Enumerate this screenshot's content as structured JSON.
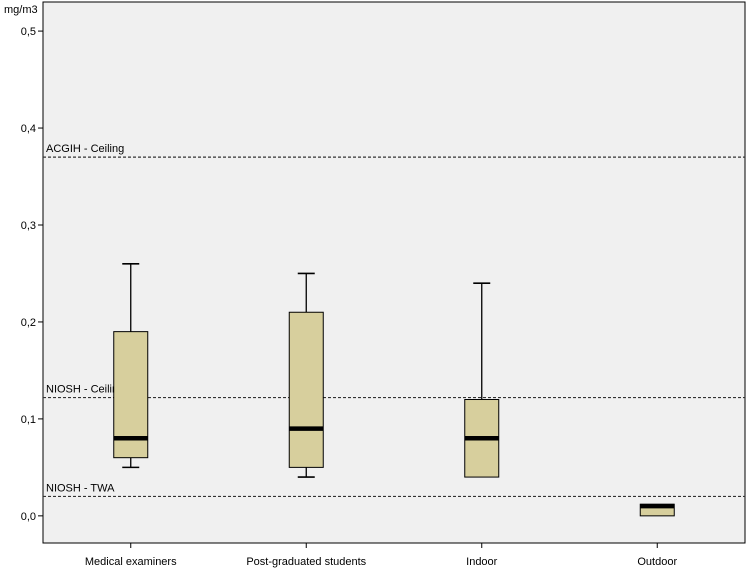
{
  "chart_data": {
    "type": "box",
    "y_unit_label": "mg/m3",
    "ylim": [
      -0.028,
      0.53
    ],
    "y_ticks": [
      {
        "value": 0.5,
        "label": "0,5"
      },
      {
        "value": 0.4,
        "label": "0,4"
      },
      {
        "value": 0.3,
        "label": "0,3"
      },
      {
        "value": 0.2,
        "label": "0,2"
      },
      {
        "value": 0.1,
        "label": "0,1"
      },
      {
        "value": 0.0,
        "label": "0,0"
      }
    ],
    "categories": [
      "Medical examiners",
      "Post-graduated students",
      "Indoor",
      "Outdoor"
    ],
    "boxes": [
      {
        "category": "Medical examiners",
        "min": 0.05,
        "q1": 0.06,
        "median": 0.08,
        "q3": 0.19,
        "max": 0.26
      },
      {
        "category": "Post-graduated students",
        "min": 0.04,
        "q1": 0.05,
        "median": 0.09,
        "q3": 0.21,
        "max": 0.25
      },
      {
        "category": "Indoor",
        "min": 0.04,
        "q1": 0.04,
        "median": 0.08,
        "q3": 0.12,
        "max": 0.24
      },
      {
        "category": "Outdoor",
        "min": 0.0,
        "q1": 0.0,
        "median": 0.01,
        "q3": 0.012,
        "max": 0.012
      }
    ],
    "reference_lines": [
      {
        "label": "ACGIH - Ceiling",
        "value": 0.37
      },
      {
        "label": "NIOSH - Ceiling",
        "value": 0.122
      },
      {
        "label": "NIOSH - TWA",
        "value": 0.02
      }
    ],
    "box_color": "#d7cf9d",
    "plot_background": "#f0f0f0",
    "grid": false
  }
}
